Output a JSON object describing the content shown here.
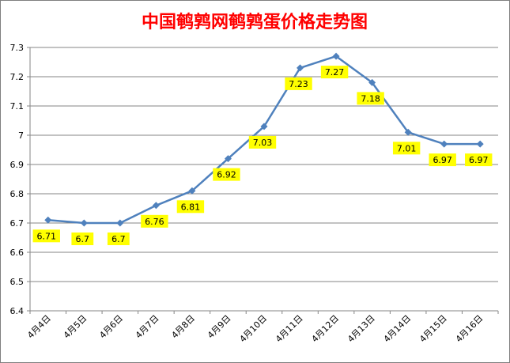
{
  "chart_data": {
    "type": "line",
    "title": "中国鹌鹑网鹌鹑蛋价格走势图",
    "xlabel": "",
    "ylabel": "",
    "categories": [
      "4月4日",
      "4月5日",
      "4月6日",
      "4月7日",
      "4月8日",
      "4月9日",
      "4月10日",
      "4月11日",
      "4月12日",
      "4月13日",
      "4月14日",
      "4月15日",
      "4月16日"
    ],
    "values": [
      6.71,
      6.7,
      6.7,
      6.76,
      6.81,
      6.92,
      7.03,
      7.23,
      7.27,
      7.18,
      7.01,
      6.97,
      6.97
    ],
    "data_labels": [
      "6.71",
      "6.7",
      "6.7",
      "6.76",
      "6.81",
      "6.92",
      "7.03",
      "7.23",
      "7.27",
      "7.18",
      "7.01",
      "6.97",
      "6.97"
    ],
    "ylim": [
      6.4,
      7.3
    ],
    "yticks": [
      "6.4",
      "6.5",
      "6.6",
      "6.7",
      "6.8",
      "6.9",
      "7",
      "7.1",
      "7.2",
      "7.3"
    ],
    "grid": true,
    "legend": "none"
  },
  "colors": {
    "title": "#ff0000",
    "line": "#4f81bd",
    "marker": "#4f81bd",
    "label_bg": "#ffff00",
    "grid": "#868686",
    "axis": "#868686"
  }
}
